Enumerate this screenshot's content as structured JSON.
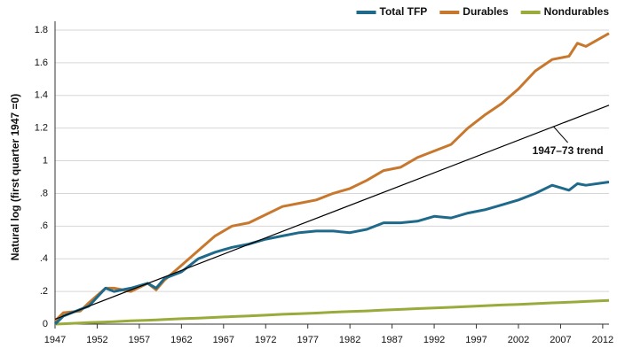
{
  "chart_data": {
    "type": "line",
    "y_label": "Natural log (first quarter 1947 =0)",
    "x": [
      1947,
      1948,
      1950,
      1951,
      1953,
      1954,
      1956,
      1958,
      1959,
      1960,
      1962,
      1964,
      1966,
      1968,
      1970,
      1972,
      1974,
      1976,
      1978,
      1980,
      1982,
      1984,
      1986,
      1988,
      1990,
      1992,
      1994,
      1996,
      1998,
      2000,
      2002,
      2004,
      2006,
      2008,
      2009,
      2010,
      2012.75
    ],
    "series": [
      {
        "name": "Total TFP",
        "color": "#1f6a8a",
        "values": [
          0,
          0.05,
          0.09,
          0.11,
          0.22,
          0.2,
          0.22,
          0.25,
          0.22,
          0.28,
          0.32,
          0.4,
          0.44,
          0.47,
          0.49,
          0.52,
          0.54,
          0.56,
          0.57,
          0.57,
          0.56,
          0.58,
          0.62,
          0.62,
          0.63,
          0.66,
          0.65,
          0.68,
          0.7,
          0.73,
          0.76,
          0.8,
          0.85,
          0.82,
          0.86,
          0.85,
          0.87
        ]
      },
      {
        "name": "Durables",
        "color": "#c8782e",
        "values": [
          0.02,
          0.07,
          0.08,
          0.13,
          0.22,
          0.22,
          0.2,
          0.25,
          0.21,
          0.27,
          0.36,
          0.45,
          0.54,
          0.6,
          0.62,
          0.67,
          0.72,
          0.74,
          0.76,
          0.8,
          0.83,
          0.88,
          0.94,
          0.96,
          1.02,
          1.06,
          1.1,
          1.2,
          1.28,
          1.35,
          1.44,
          1.55,
          1.62,
          1.64,
          1.72,
          1.7,
          1.78
        ]
      },
      {
        "name": "Nondurables",
        "color": "#9aab3c",
        "values": [
          0,
          0.002,
          0.007,
          0.009,
          0.013,
          0.015,
          0.02,
          0.024,
          0.026,
          0.028,
          0.033,
          0.037,
          0.041,
          0.046,
          0.05,
          0.055,
          0.06,
          0.064,
          0.068,
          0.073,
          0.077,
          0.081,
          0.086,
          0.09,
          0.095,
          0.099,
          0.103,
          0.108,
          0.112,
          0.117,
          0.121,
          0.125,
          0.13,
          0.134,
          0.136,
          0.139,
          0.145
        ]
      }
    ],
    "trend_line": {
      "label": "1947–73 trend",
      "color": "#000000",
      "x": [
        1947,
        2012.75
      ],
      "values": [
        0.03,
        1.34
      ]
    },
    "xlim": [
      1947,
      2012.75
    ],
    "xticks": [
      1947,
      1952,
      1957,
      1962,
      1967,
      1972,
      1977,
      1982,
      1987,
      1992,
      1997,
      2002,
      2007,
      2012
    ],
    "ylim": [
      0,
      1.8
    ],
    "yticks": [
      0,
      {
        "value": 0.2,
        "label": ".2"
      },
      {
        "value": 0.4,
        "label": ".4"
      },
      {
        "value": 0.6,
        "label": ".6"
      },
      {
        "value": 0.8,
        "label": ".8"
      },
      1,
      1.2,
      1.4,
      1.6,
      1.8
    ],
    "grid": true,
    "legend_position": "top-right"
  }
}
